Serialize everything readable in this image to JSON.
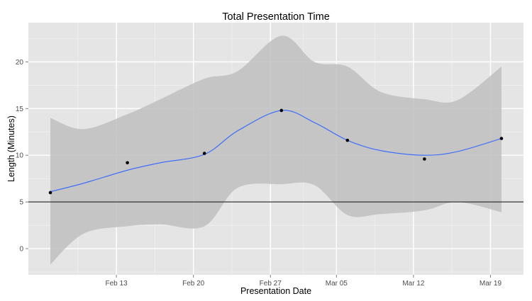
{
  "chart_data": {
    "type": "line",
    "title": "Total Presentation Time",
    "xlabel": "Presentation Date",
    "ylabel": "Length (Minutes)",
    "x_ticks": [
      "Feb 13",
      "Feb 20",
      "Feb 27",
      "Mar 05",
      "Mar 12",
      "Mar 19"
    ],
    "x_tick_dates": [
      "2014-02-13",
      "2014-02-20",
      "2014-02-27",
      "2014-03-05",
      "2014-03-12",
      "2014-03-19"
    ],
    "xlim": [
      "2014-02-05",
      "2014-03-22"
    ],
    "y_ticks": [
      0,
      5,
      10,
      15,
      20
    ],
    "ylim": [
      -2.8,
      24.2
    ],
    "points": {
      "x": [
        "2014-02-07",
        "2014-02-14",
        "2014-02-21",
        "2014-02-28",
        "2014-03-06",
        "2014-03-13",
        "2014-03-20"
      ],
      "y": [
        6.0,
        9.2,
        10.2,
        14.8,
        11.6,
        9.6,
        11.8
      ]
    },
    "smooth": {
      "x": [
        "2014-02-07",
        "2014-02-10",
        "2014-02-14",
        "2014-02-17",
        "2014-02-21",
        "2014-02-24",
        "2014-02-28",
        "2014-03-03",
        "2014-03-06",
        "2014-03-09",
        "2014-03-13",
        "2014-03-16",
        "2014-03-20"
      ],
      "y": [
        6.1,
        7.0,
        8.4,
        9.2,
        10.1,
        12.6,
        14.8,
        13.5,
        11.6,
        10.5,
        10.0,
        10.4,
        11.8
      ],
      "lower": [
        -1.7,
        1.6,
        2.4,
        2.6,
        2.4,
        6.5,
        6.9,
        6.8,
        3.6,
        3.7,
        4.1,
        5.0,
        3.9
      ],
      "upper": [
        14.0,
        12.8,
        14.4,
        16.0,
        18.2,
        19.0,
        22.8,
        20.0,
        19.5,
        16.8,
        16.0,
        15.9,
        19.5
      ]
    },
    "hline": 5,
    "colors": {
      "panel": "#e5e5e5",
      "grid_major": "#ffffff",
      "grid_minor": "#f2f2f2",
      "ribbon": "#bfbfbf",
      "line": "#3366ff",
      "points": "#000000",
      "hline": "#333333"
    },
    "grid": true,
    "legend": "none"
  }
}
